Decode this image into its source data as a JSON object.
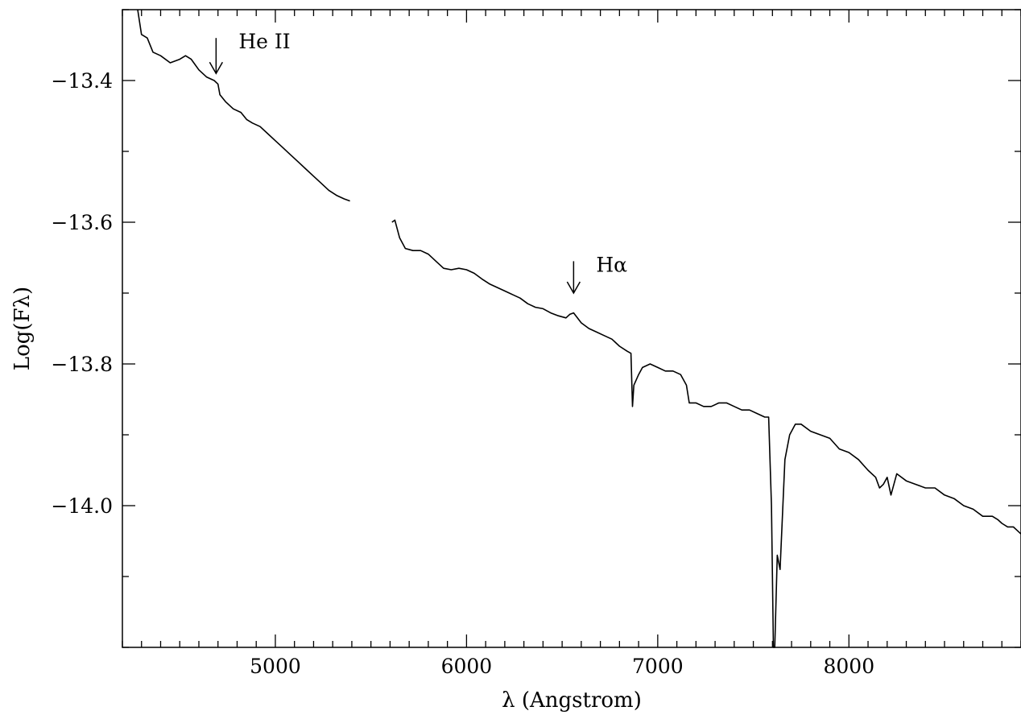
{
  "chart_data": {
    "type": "line",
    "title": "",
    "xlabel": "λ (Angstrom)",
    "ylabel": "Log(Fλ)",
    "xlim": [
      4200,
      8900
    ],
    "ylim": [
      -14.2,
      -13.3
    ],
    "x_major_ticks": [
      5000,
      6000,
      7000,
      8000
    ],
    "x_tick_labels": [
      "5000",
      "6000",
      "7000",
      "8000"
    ],
    "x_minor_step": 100,
    "y_major_ticks": [
      -13.4,
      -13.6,
      -13.8,
      -14.0
    ],
    "y_tick_labels": [
      "−13.4",
      "−13.6",
      "−13.8",
      "−14.0"
    ],
    "y_minor_step": 0.1,
    "grid": false,
    "legend": "none",
    "series": [
      {
        "segments": [
          [
            [
              4280,
              -13.3
            ],
            [
              4300,
              -13.335
            ],
            [
              4330,
              -13.34
            ],
            [
              4360,
              -13.36
            ],
            [
              4400,
              -13.365
            ],
            [
              4450,
              -13.375
            ],
            [
              4500,
              -13.37
            ],
            [
              4530,
              -13.365
            ],
            [
              4560,
              -13.37
            ],
            [
              4600,
              -13.385
            ],
            [
              4640,
              -13.395
            ],
            [
              4680,
              -13.4
            ],
            [
              4700,
              -13.405
            ],
            [
              4710,
              -13.42
            ],
            [
              4740,
              -13.43
            ],
            [
              4780,
              -13.44
            ],
            [
              4820,
              -13.445
            ],
            [
              4850,
              -13.455
            ],
            [
              4880,
              -13.46
            ],
            [
              4920,
              -13.465
            ],
            [
              4960,
              -13.475
            ],
            [
              5000,
              -13.485
            ],
            [
              5040,
              -13.495
            ],
            [
              5080,
              -13.505
            ],
            [
              5120,
              -13.515
            ],
            [
              5160,
              -13.525
            ],
            [
              5200,
              -13.535
            ],
            [
              5240,
              -13.545
            ],
            [
              5280,
              -13.555
            ],
            [
              5320,
              -13.562
            ],
            [
              5360,
              -13.567
            ],
            [
              5390,
              -13.57
            ]
          ],
          [
            [
              5610,
              -13.6
            ],
            [
              5625,
              -13.597
            ],
            [
              5650,
              -13.622
            ],
            [
              5680,
              -13.637
            ],
            [
              5720,
              -13.64
            ],
            [
              5760,
              -13.64
            ],
            [
              5800,
              -13.645
            ],
            [
              5840,
              -13.655
            ],
            [
              5880,
              -13.665
            ],
            [
              5920,
              -13.667
            ],
            [
              5960,
              -13.665
            ],
            [
              6000,
              -13.667
            ],
            [
              6040,
              -13.672
            ],
            [
              6080,
              -13.68
            ],
            [
              6120,
              -13.687
            ],
            [
              6160,
              -13.692
            ],
            [
              6200,
              -13.697
            ],
            [
              6240,
              -13.702
            ],
            [
              6280,
              -13.707
            ],
            [
              6320,
              -13.715
            ],
            [
              6360,
              -13.72
            ],
            [
              6400,
              -13.722
            ],
            [
              6440,
              -13.728
            ],
            [
              6480,
              -13.732
            ],
            [
              6520,
              -13.735
            ],
            [
              6540,
              -13.73
            ],
            [
              6560,
              -13.728
            ],
            [
              6600,
              -13.742
            ],
            [
              6640,
              -13.75
            ],
            [
              6680,
              -13.755
            ],
            [
              6720,
              -13.76
            ],
            [
              6760,
              -13.765
            ],
            [
              6800,
              -13.775
            ],
            [
              6840,
              -13.782
            ],
            [
              6860,
              -13.785
            ],
            [
              6868,
              -13.86
            ],
            [
              6875,
              -13.83
            ],
            [
              6900,
              -13.815
            ],
            [
              6920,
              -13.805
            ],
            [
              6960,
              -13.8
            ],
            [
              7000,
              -13.805
            ],
            [
              7040,
              -13.81
            ],
            [
              7080,
              -13.81
            ],
            [
              7120,
              -13.815
            ],
            [
              7150,
              -13.83
            ],
            [
              7165,
              -13.855
            ],
            [
              7200,
              -13.855
            ],
            [
              7240,
              -13.86
            ],
            [
              7280,
              -13.86
            ],
            [
              7320,
              -13.855
            ],
            [
              7360,
              -13.855
            ],
            [
              7400,
              -13.86
            ],
            [
              7440,
              -13.865
            ],
            [
              7480,
              -13.865
            ],
            [
              7520,
              -13.87
            ],
            [
              7560,
              -13.875
            ],
            [
              7580,
              -13.875
            ],
            [
              7595,
              -14.0
            ],
            [
              7605,
              -14.2
            ],
            [
              7612,
              -14.2
            ],
            [
              7625,
              -14.07
            ],
            [
              7640,
              -14.09
            ],
            [
              7665,
              -13.935
            ],
            [
              7690,
              -13.9
            ],
            [
              7720,
              -13.885
            ],
            [
              7750,
              -13.885
            ],
            [
              7800,
              -13.895
            ],
            [
              7850,
              -13.9
            ],
            [
              7900,
              -13.905
            ],
            [
              7950,
              -13.92
            ],
            [
              8000,
              -13.925
            ],
            [
              8050,
              -13.935
            ],
            [
              8100,
              -13.95
            ],
            [
              8140,
              -13.96
            ],
            [
              8160,
              -13.975
            ],
            [
              8180,
              -13.97
            ],
            [
              8200,
              -13.96
            ],
            [
              8220,
              -13.985
            ],
            [
              8250,
              -13.955
            ],
            [
              8300,
              -13.965
            ],
            [
              8350,
              -13.97
            ],
            [
              8400,
              -13.975
            ],
            [
              8450,
              -13.975
            ],
            [
              8500,
              -13.985
            ],
            [
              8550,
              -13.99
            ],
            [
              8600,
              -14.0
            ],
            [
              8650,
              -14.005
            ],
            [
              8700,
              -14.015
            ],
            [
              8750,
              -14.015
            ],
            [
              8780,
              -14.02
            ],
            [
              8800,
              -14.025
            ],
            [
              8830,
              -14.03
            ],
            [
              8860,
              -14.03
            ],
            [
              8880,
              -14.035
            ],
            [
              8900,
              -14.04
            ]
          ]
        ]
      }
    ],
    "annotations": [
      {
        "text": "He II",
        "x": 4690,
        "y_tip": -13.39,
        "y_tail": -13.34
      },
      {
        "text": "Hα",
        "x": 6560,
        "y_tip": -13.7,
        "y_tail": -13.655
      }
    ]
  }
}
